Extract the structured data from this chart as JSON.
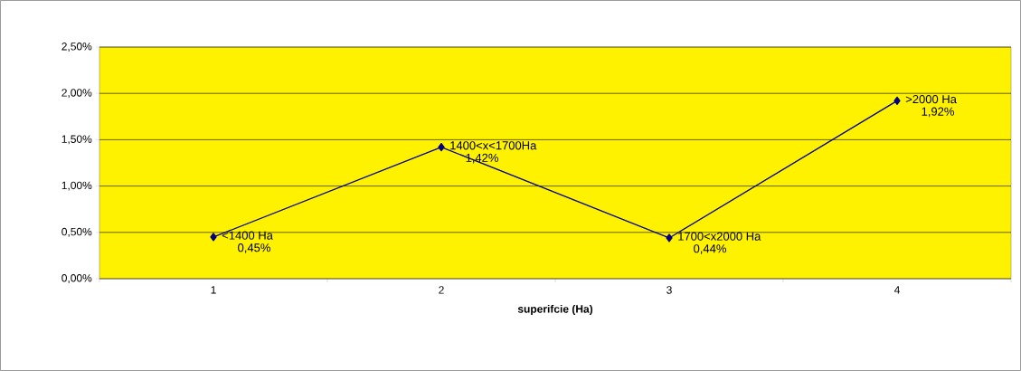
{
  "chart_data": {
    "type": "line",
    "xlabel": "superifcie (Ha)",
    "categories": [
      "1",
      "2",
      "3",
      "4"
    ],
    "series": [
      {
        "color": "#000080",
        "values": [
          0.45,
          1.42,
          0.44,
          1.92
        ],
        "value_labels": [
          "0,45%",
          "1,42%",
          "0,44%",
          "1,92%"
        ]
      }
    ],
    "annotations": [
      {
        "text": "<1400 Ha",
        "x": "1",
        "y": 0.45
      },
      {
        "text": "1400<x<1700Ha",
        "x": "2",
        "y": 1.42
      },
      {
        "text": "1700<x2000 Ha",
        "x": "3",
        "y": 0.44
      },
      {
        "text": ">2000 Ha",
        "x": "4",
        "y": 1.92
      }
    ],
    "ylim": [
      0,
      2.5
    ],
    "yticks": [
      {
        "value": 0,
        "label": "0,00%"
      },
      {
        "value": 0.5,
        "label": "0,50%"
      },
      {
        "value": 1,
        "label": "1,00%"
      },
      {
        "value": 1.5,
        "label": "1,50%"
      },
      {
        "value": 2,
        "label": "2,00%"
      },
      {
        "value": 2.5,
        "label": "2,50%"
      }
    ],
    "grid": "y",
    "marker": "diamond",
    "line_style": "solid"
  }
}
